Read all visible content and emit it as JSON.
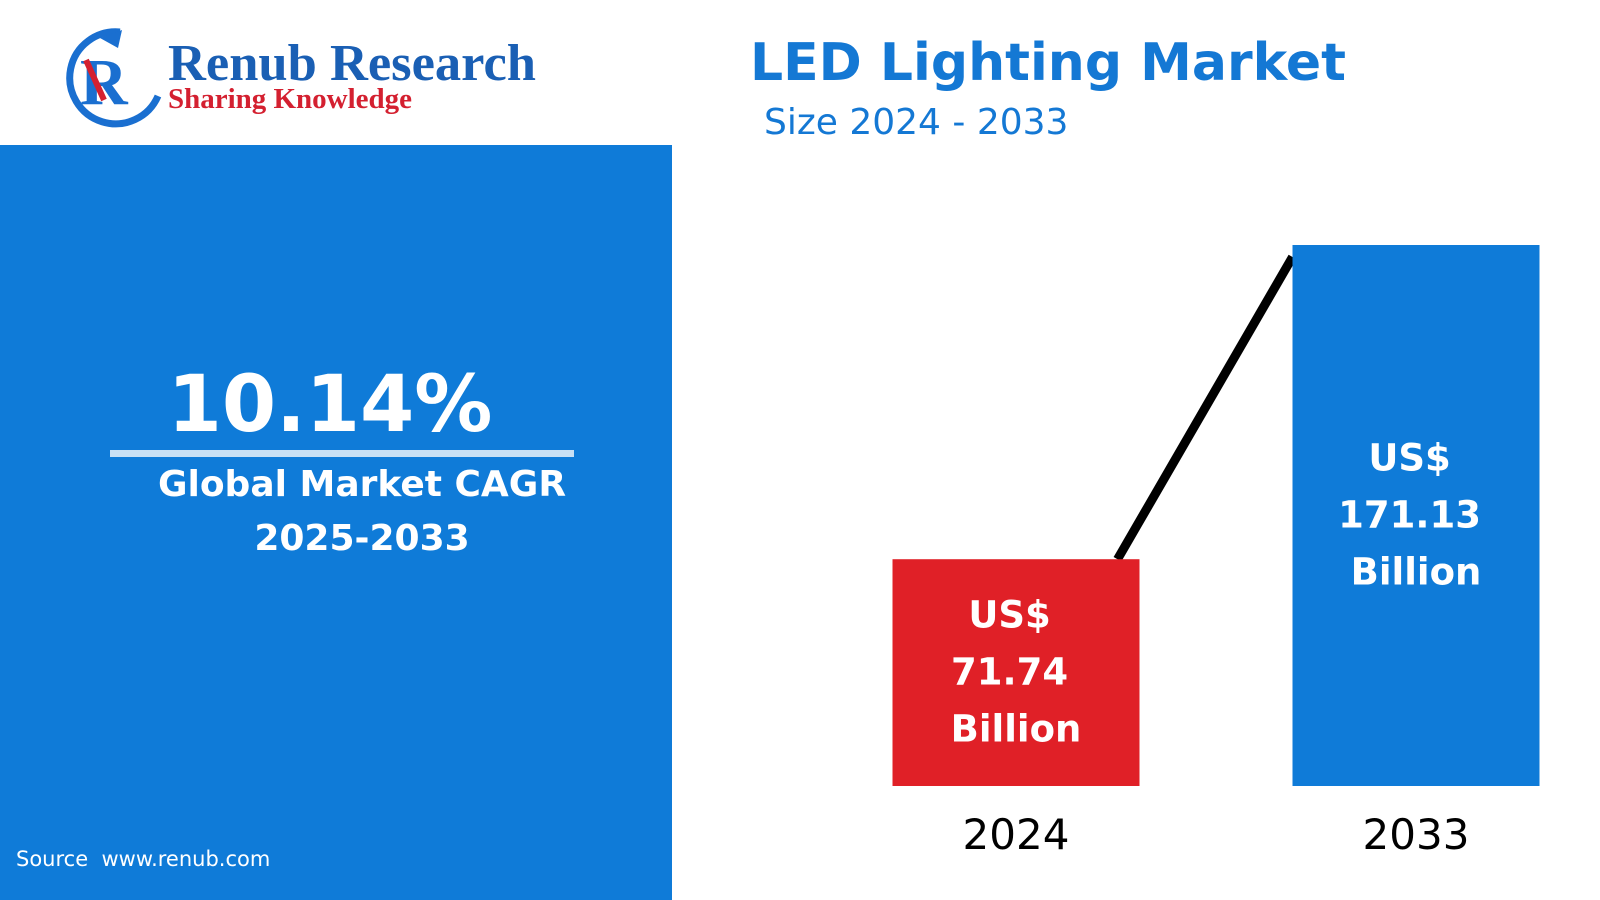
{
  "logo": {
    "name": "Renub Research",
    "tagline": "Sharing Knowledge"
  },
  "cagr": {
    "value": "10.14%",
    "label": "Global Market CAGR",
    "period": "2025-2033"
  },
  "source": "Source  www.renub.com",
  "chart_data": {
    "type": "bar",
    "title": "LED Lighting Market",
    "subtitle": "Size 2024 - 2033",
    "categories": [
      "2024",
      "2033"
    ],
    "values": [
      71.74,
      171.13
    ],
    "value_labels": [
      "US$ 71.74 Billion",
      "US$ 171.13 Billion"
    ],
    "colors": [
      "#e02027",
      "#0f7bd8"
    ]
  }
}
